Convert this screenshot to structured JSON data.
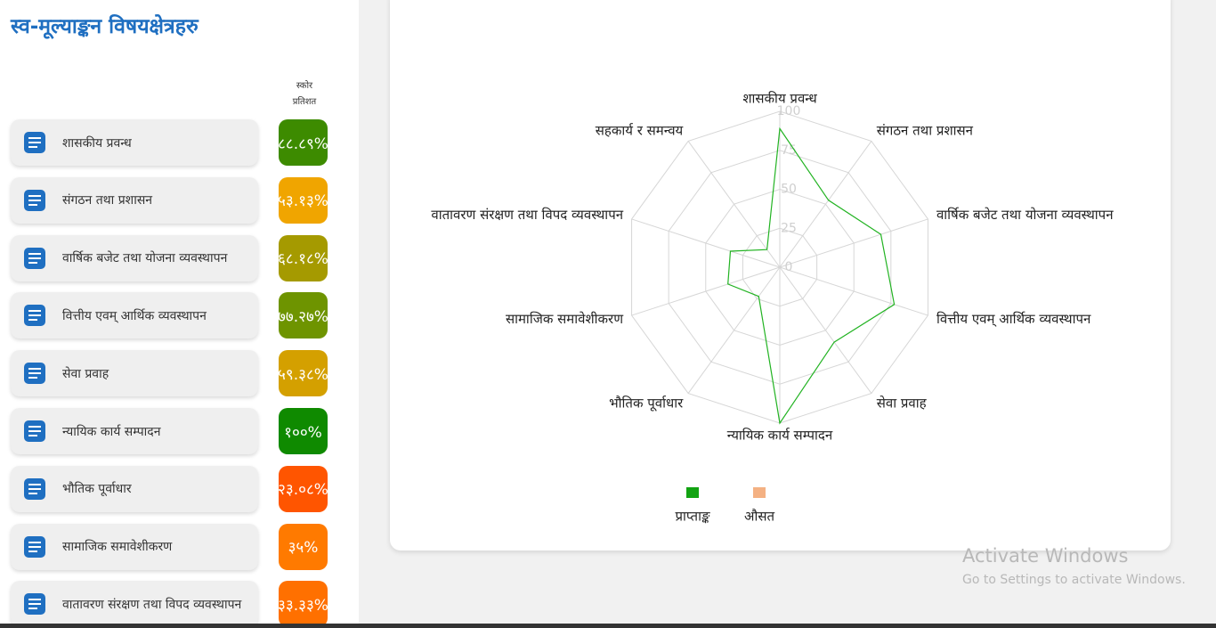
{
  "sidebar": {
    "title": "स्व-मूल्याङ्कन विषयक्षेत्रहरु",
    "score_header": [
      "स्कोर",
      "प्रतिशत"
    ],
    "items": [
      {
        "label": "शासकीय प्रवन्ध",
        "score": "८८.८९%",
        "color": "#3d8b00"
      },
      {
        "label": "संगठन तथा प्रशासन",
        "score": "५३.१३%",
        "color": "#f0a500"
      },
      {
        "label": "वार्षिक बजेट तथा योजना व्यवस्थापन",
        "score": "६८.१८%",
        "color": "#a59a00"
      },
      {
        "label": "वित्तीय एवम् आर्थिक व्यवस्थापन",
        "score": "७७.२७%",
        "color": "#6e9400"
      },
      {
        "label": "सेवा प्रवाह",
        "score": "५९.३८%",
        "color": "#d4a000"
      },
      {
        "label": "न्यायिक कार्य सम्पादन",
        "score": "१००%",
        "color": "#0f8a00"
      },
      {
        "label": "भौतिक पूर्वाधार",
        "score": "२३.०८%",
        "color": "#ff5500"
      },
      {
        "label": "सामाजिक समावेशीकरण",
        "score": "३५%",
        "color": "#ff7a00"
      },
      {
        "label": "वातावरण संरक्षण तथा विपद व्यवस्थापन",
        "score": "३३.३३%",
        "color": "#ff7000"
      }
    ]
  },
  "chart_data": {
    "type": "radar",
    "categories": [
      "शासकीय प्रवन्ध",
      "संगठन तथा प्रशासन",
      "वार्षिक बजेट तथा योजना व्यवस्थापन",
      "वित्तीय एवम् आर्थिक व्यवस्थापन",
      "सेवा प्रवाह",
      "न्यायिक कार्य सम्पादन",
      "भौतिक पूर्वाधार",
      "सामाजिक समावेशीकरण",
      "वातावरण संरक्षण तथा विपद व्यवस्थापन",
      "सहकार्य र समन्वय"
    ],
    "series": [
      {
        "name": "प्राप्ताङ्क",
        "color": "#22b322",
        "legend_color": "#12a312",
        "values": [
          88.89,
          53.13,
          68.18,
          77.27,
          59.38,
          100,
          23.08,
          35,
          33.33,
          14
        ]
      },
      {
        "name": "औसत",
        "color": "#f4b183",
        "legend_color": "#f4b183",
        "values": [
          null,
          null,
          null,
          null,
          null,
          null,
          null,
          null,
          null,
          null
        ]
      }
    ],
    "rlim": [
      0,
      100
    ],
    "rticks": [
      0,
      25,
      50,
      75,
      100
    ],
    "grid": true,
    "legend": "bottom"
  },
  "watermark": {
    "title": "Activate Windows",
    "subtitle": "Go to Settings to activate Windows."
  }
}
